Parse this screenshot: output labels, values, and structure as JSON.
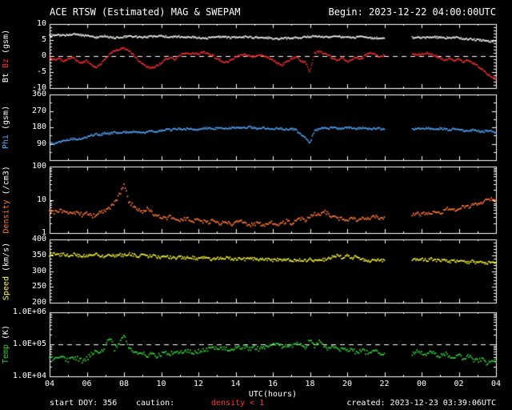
{
  "header": {
    "begin": "Begin: 2023-12-22 04:00:00UTC"
  },
  "footer": {
    "start_doy": "start DOY: 356",
    "caution_label": "caution:",
    "caution_value": "density < 1",
    "created": "created: 2023-12-23 03:39:06UTC"
  },
  "colors": {
    "background": "#000000",
    "frame": "#ffffff",
    "text": "#ffffff",
    "bt": "#ffffff",
    "bz": "#ff3030",
    "phi": "#55aaff",
    "density": "#ff7733",
    "speed": "#ffff33",
    "temp": "#33cc33",
    "caution": "#ff3333"
  },
  "chart_data": {
    "type": "line",
    "title": "ACE RTSW (Estimated) MAG & SWEPAM",
    "subtitle": "Begin: 2023-12-22 04:00:00UTC",
    "legend_position": "none",
    "grid": false,
    "data_gap_utc_hours": [
      22.25,
      23.25
    ],
    "x_axis": {
      "label": "UTC(hours)",
      "start": 4,
      "end": 28,
      "sample_step_hours": 0.25,
      "tick_hours": [
        4,
        6,
        8,
        10,
        12,
        14,
        16,
        18,
        20,
        22,
        24,
        26,
        28
      ],
      "tick_labels": [
        "04",
        "06",
        "08",
        "10",
        "12",
        "14",
        "16",
        "18",
        "20",
        "22",
        "00",
        "02",
        "04"
      ]
    },
    "panels": [
      {
        "id": "mag",
        "scale": "linear",
        "ymin": -10,
        "ymax": 10,
        "yminor": 1,
        "dashed_at": 0,
        "yticks": [
          {
            "v": 10,
            "label": "10"
          },
          {
            "v": 5,
            "label": "5"
          },
          {
            "v": 0,
            "label": "0"
          },
          {
            "v": -5,
            "label": "-5"
          },
          {
            "v": -10,
            "label": "-10"
          }
        ],
        "ylabel_parts": [
          {
            "text": "Bt",
            "color": "#ffffff"
          },
          {
            "text": "Bz",
            "color": "#ff3030"
          },
          {
            "text": "(gsm)",
            "color": "#ffffff"
          }
        ],
        "series": [
          {
            "name": "Bt",
            "color": "#ffffff",
            "values": [
              6.3,
              6.5,
              6.6,
              6.4,
              6.6,
              6.8,
              6.7,
              6.5,
              6.3,
              6.0,
              5.8,
              6.1,
              6.2,
              5.9,
              5.7,
              5.8,
              6.0,
              6.2,
              6.1,
              5.9,
              5.8,
              6.0,
              6.1,
              6.0,
              6.2,
              6.1,
              5.9,
              6.0,
              6.1,
              6.0,
              5.8,
              5.9,
              5.7,
              5.5,
              5.6,
              5.8,
              5.9,
              6.0,
              5.8,
              5.7,
              5.8,
              5.9,
              6.0,
              5.9,
              5.8,
              5.7,
              5.6,
              5.7,
              5.5,
              5.4,
              5.6,
              5.5,
              5.6,
              5.8,
              5.7,
              5.9,
              6.0,
              6.2,
              6.1,
              6.0,
              5.9,
              6.0,
              6.1,
              6.0,
              5.9,
              5.8,
              5.9,
              6.0,
              5.8,
              5.7,
              5.6,
              5.7,
              5.6,
              null,
              null,
              null,
              null,
              null,
              5.8,
              5.9,
              5.8,
              5.7,
              5.8,
              5.9,
              5.8,
              5.6,
              5.7,
              5.8,
              5.6,
              5.5,
              5.3,
              5.2,
              5.0,
              4.9,
              4.7,
              4.6,
              4.8
            ]
          },
          {
            "name": "Bz",
            "color": "#ff3030",
            "values": [
              -0.5,
              -1.2,
              -0.8,
              -1.5,
              -1.0,
              -0.3,
              -1.8,
              -2.2,
              -1.5,
              -2.8,
              -3.6,
              -2.5,
              -1.0,
              0.8,
              1.5,
              2.2,
              2.6,
              1.8,
              0.5,
              -1.2,
              -2.5,
              -3.4,
              -3.8,
              -3.0,
              -2.2,
              -1.0,
              -0.5,
              -1.2,
              0.3,
              0.8,
              0.5,
              1.0,
              0.6,
              1.2,
              0.8,
              0.2,
              -0.8,
              -1.5,
              -2.0,
              -1.2,
              -0.5,
              0.2,
              0.5,
              0.0,
              -0.3,
              0.4,
              0.2,
              -0.5,
              -1.2,
              -2.2,
              -2.8,
              -1.8,
              -1.0,
              -0.2,
              -1.5,
              -2.0,
              -4.8,
              1.0,
              1.4,
              0.8,
              0.2,
              -0.8,
              -1.4,
              -0.6,
              -1.8,
              -1.2,
              -0.4,
              -1.0,
              0.4,
              1.0,
              0.6,
              -0.2,
              0.2,
              null,
              null,
              null,
              null,
              null,
              0.8,
              0.4,
              0.6,
              1.0,
              0.5,
              0.0,
              -0.6,
              -1.2,
              -0.8,
              -1.5,
              -1.0,
              -1.8,
              -1.2,
              -2.2,
              -3.0,
              -4.2,
              -5.5,
              -6.5,
              -7.0
            ]
          }
        ]
      },
      {
        "id": "phi",
        "scale": "linear",
        "ymin": 0,
        "ymax": 360,
        "yminor": 45,
        "dashed_at": null,
        "yticks": [
          {
            "v": 360,
            "label": "360"
          },
          {
            "v": 270,
            "label": "270"
          },
          {
            "v": 180,
            "label": "180"
          },
          {
            "v": 90,
            "label": "90"
          }
        ],
        "ylabel_parts": [
          {
            "text": "Phi",
            "color": "#55aaff"
          },
          {
            "text": "(gsm)",
            "color": "#ffffff"
          }
        ],
        "series": [
          {
            "name": "Phi",
            "color": "#55aaff",
            "values": [
              95,
              88,
              100,
              105,
              110,
              118,
              112,
              120,
              125,
              135,
              142,
              138,
              150,
              145,
              152,
              148,
              155,
              150,
              158,
              152,
              148,
              155,
              160,
              156,
              162,
              168,
              165,
              170,
              172,
              168,
              175,
              170,
              165,
              172,
              176,
              170,
              174,
              178,
              172,
              176,
              180,
              175,
              178,
              182,
              176,
              172,
              178,
              174,
              170,
              175,
              172,
              168,
              172,
              165,
              140,
              120,
              95,
              160,
              172,
              178,
              174,
              178,
              172,
              176,
              180,
              176,
              172,
              178,
              174,
              170,
              175,
              172,
              170,
              null,
              null,
              null,
              null,
              null,
              168,
              174,
              170,
              176,
              172,
              168,
              174,
              170,
              165,
              172,
              168,
              162,
              158,
              165,
              160,
              155,
              162,
              158,
              150
            ]
          }
        ]
      },
      {
        "id": "density",
        "scale": "log",
        "ymin": 1,
        "ymax": 100,
        "dashed_at": null,
        "yticks": [
          {
            "v": 100,
            "label": "100"
          },
          {
            "v": 10,
            "label": "10"
          },
          {
            "v": 1,
            "label": "1"
          }
        ],
        "ylabel_parts": [
          {
            "text": "Density",
            "color": "#ff7733"
          },
          {
            "text": "(/cm3)",
            "color": "#ffffff"
          }
        ],
        "series": [
          {
            "name": "Density",
            "color": "#ff7733",
            "values": [
              4.5,
              4.0,
              4.8,
              4.2,
              3.8,
              4.4,
              4.0,
              3.5,
              3.8,
              3.2,
              3.6,
              4.2,
              4.5,
              5.5,
              8.0,
              14.0,
              30.0,
              9.0,
              6.5,
              5.0,
              4.5,
              5.5,
              4.0,
              3.5,
              3.0,
              2.8,
              3.2,
              2.6,
              2.4,
              2.8,
              2.5,
              2.2,
              2.6,
              2.3,
              2.0,
              2.4,
              2.2,
              1.9,
              2.1,
              1.8,
              2.0,
              2.2,
              1.9,
              1.7,
              1.8,
              2.0,
              1.7,
              1.9,
              2.1,
              1.8,
              2.0,
              2.3,
              2.0,
              2.4,
              2.8,
              2.5,
              3.2,
              4.0,
              3.5,
              4.5,
              3.8,
              3.0,
              2.6,
              2.9,
              2.5,
              2.8,
              2.4,
              2.7,
              3.0,
              2.6,
              3.2,
              2.8,
              3.0,
              null,
              null,
              null,
              null,
              null,
              3.5,
              4.0,
              3.6,
              4.2,
              3.8,
              4.5,
              4.0,
              4.8,
              5.5,
              5.0,
              5.8,
              6.5,
              6.0,
              7.0,
              7.5,
              8.5,
              9.5,
              10.5,
              9.0
            ]
          }
        ]
      },
      {
        "id": "speed",
        "scale": "linear",
        "ymin": 200,
        "ymax": 400,
        "yminor": 10,
        "dashed_at": null,
        "yticks": [
          {
            "v": 400,
            "label": "400"
          },
          {
            "v": 350,
            "label": "350"
          },
          {
            "v": 300,
            "label": "300"
          },
          {
            "v": 250,
            "label": "250"
          },
          {
            "v": 200,
            "label": "200"
          }
        ],
        "ylabel_parts": [
          {
            "text": "Speed",
            "color": "#ffff33"
          },
          {
            "text": "(km/s)",
            "color": "#ffffff"
          }
        ],
        "series": [
          {
            "name": "Speed",
            "color": "#ffff33",
            "values": [
              352,
              356,
              350,
              354,
              348,
              353,
              350,
              346,
              350,
              347,
              352,
              348,
              345,
              350,
              348,
              352,
              349,
              354,
              351,
              347,
              350,
              346,
              349,
              345,
              342,
              346,
              343,
              340,
              344,
              341,
              345,
              342,
              339,
              343,
              340,
              337,
              341,
              338,
              342,
              339,
              336,
              340,
              337,
              341,
              338,
              335,
              339,
              336,
              333,
              337,
              334,
              338,
              335,
              332,
              336,
              333,
              337,
              334,
              338,
              335,
              340,
              345,
              350,
              342,
              348,
              341,
              346,
              338,
              335,
              332,
              336,
              333,
              334,
              null,
              null,
              null,
              null,
              null,
              338,
              335,
              337,
              334,
              338,
              335,
              332,
              336,
              330,
              333,
              328,
              331,
              327,
              330,
              326,
              329,
              325,
              328,
              326
            ]
          }
        ]
      },
      {
        "id": "temp",
        "scale": "log",
        "ymin": 10000,
        "ymax": 1000000,
        "dashed_at": 100000,
        "yticks": [
          {
            "v": 1000000,
            "label": "1.0E+06"
          },
          {
            "v": 100000,
            "label": "1.0E+05"
          },
          {
            "v": 10000,
            "label": "1.0E+04"
          }
        ],
        "ylabel_parts": [
          {
            "text": "Temp",
            "color": "#33cc33"
          },
          {
            "text": "(K)",
            "color": "#ffffff"
          }
        ],
        "series": [
          {
            "name": "Temp",
            "color": "#33cc33",
            "values": [
              40000,
              35000,
              45000,
              38000,
              32000,
              42000,
              36000,
              30000,
              35000,
              48000,
              65000,
              55000,
              90000,
              160000,
              70000,
              120000,
              220000,
              80000,
              60000,
              50000,
              55000,
              45000,
              50000,
              42000,
              48000,
              55000,
              50000,
              60000,
              55000,
              65000,
              60000,
              52000,
              62000,
              70000,
              65000,
              75000,
              70000,
              80000,
              72000,
              68000,
              75000,
              85000,
              78000,
              70000,
              80000,
              72000,
              85000,
              78000,
              90000,
              105000,
              85000,
              95000,
              88000,
              110000,
              90000,
              75000,
              130000,
              90000,
              115000,
              80000,
              70000,
              80000,
              65000,
              75000,
              60000,
              70000,
              55000,
              65000,
              58000,
              50000,
              62000,
              55000,
              52000,
              null,
              null,
              null,
              null,
              null,
              50000,
              58000,
              52000,
              45000,
              55000,
              48000,
              42000,
              50000,
              45000,
              38000,
              44000,
              36000,
              42000,
              34000,
              30000,
              36000,
              26000,
              32000,
              28000
            ]
          }
        ]
      }
    ]
  }
}
